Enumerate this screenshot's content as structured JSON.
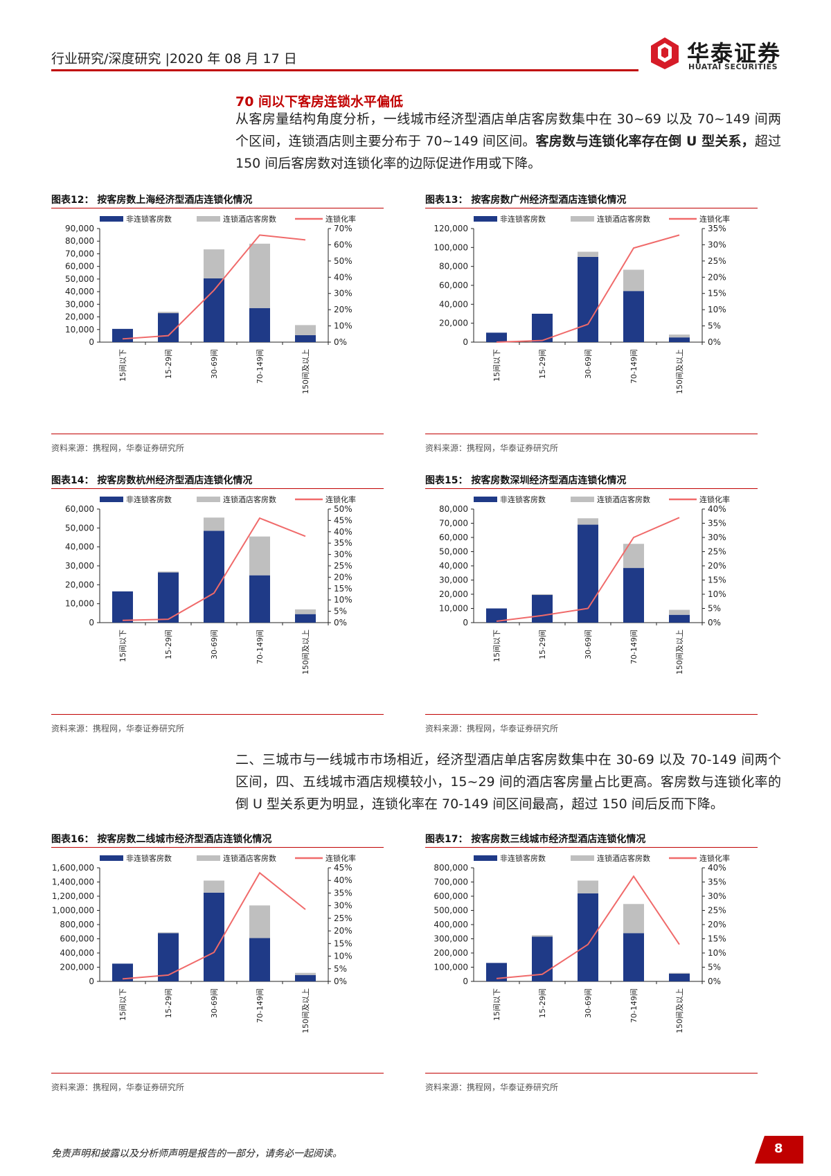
{
  "header": {
    "left_text": "行业研究/深度研究  |2020 年 08 月 17 日",
    "logo_cn": "华泰证券",
    "logo_en": "HUATAI SECURITIES"
  },
  "section": {
    "title": "70 间以下客房连锁水平偏低",
    "para1_a": "从客房量结构角度分析，一线城市经济型酒店单店客房数集中在 30~69 以及 70~149 间两个区间，连锁酒店则主要分布于 70~149 间区间。",
    "para1_b": "客房数与连锁化率存在倒 U 型关系，",
    "para1_c": "超过 150 间后客房数对连锁化率的边际促进作用或下降。",
    "para2": "二、三城市与一线城市市场相近，经济型酒店单店客房数集中在 30-69 以及 70-149 间两个区间，四、五线城市酒店规模较小，15~29 间的酒店客房量占比更高。客房数与连锁化率的倒 U 型关系更为明显，连锁化率在 70-149 间区间最高，超过 150 间后反而下降。"
  },
  "colors": {
    "accent": "#c00000",
    "bar_dark": "#1f3a87",
    "bar_light": "#bfbfbf",
    "line": "#f06a6a"
  },
  "legend": {
    "a": "非连锁客房数",
    "b": "连锁酒店客房数",
    "c": "连锁化率"
  },
  "source_text": "资料来源：携程网，华泰证券研究所",
  "chart_data": [
    {
      "type": "bar",
      "label": "图表12：",
      "title": "按客房数上海经济型酒店连锁化情况",
      "categories": [
        "15间以下",
        "15-29间",
        "30-69间",
        "70-149间",
        "150间及以上"
      ],
      "series": [
        {
          "name": "非连锁客房数",
          "values": [
            10500,
            23000,
            50500,
            27000,
            5500
          ]
        },
        {
          "name": "连锁酒店客房数",
          "values": [
            0,
            1000,
            23000,
            51000,
            8000
          ]
        },
        {
          "name": "连锁化率",
          "values": [
            2,
            4,
            32,
            66,
            63
          ]
        }
      ],
      "y_left": {
        "max": 90000,
        "ticks": [
          "0",
          "10,000",
          "20,000",
          "30,000",
          "40,000",
          "50,000",
          "60,000",
          "70,000",
          "80,000",
          "90,000"
        ]
      },
      "y_right": {
        "max": 70,
        "ticks": [
          "0%",
          "10%",
          "20%",
          "30%",
          "40%",
          "50%",
          "60%",
          "70%"
        ]
      }
    },
    {
      "type": "bar",
      "label": "图表13：",
      "title": "按客房数广州经济型酒店连锁化情况",
      "categories": [
        "15间以下",
        "15-29间",
        "30-69间",
        "70-149间",
        "150间及以上"
      ],
      "series": [
        {
          "name": "非连锁客房数",
          "values": [
            10000,
            30000,
            90000,
            54000,
            5000
          ]
        },
        {
          "name": "连锁酒店客房数",
          "values": [
            0,
            0,
            5500,
            22500,
            3000
          ]
        },
        {
          "name": "连锁化率",
          "values": [
            0,
            0.5,
            5.5,
            29,
            33
          ]
        }
      ],
      "y_left": {
        "max": 120000,
        "ticks": [
          "0",
          "20,000",
          "40,000",
          "60,000",
          "80,000",
          "100,000",
          "120,000"
        ]
      },
      "y_right": {
        "max": 35,
        "ticks": [
          "0%",
          "5%",
          "10%",
          "15%",
          "20%",
          "25%",
          "30%",
          "35%"
        ]
      }
    },
    {
      "type": "bar",
      "label": "图表14：",
      "title": "按客房数杭州经济型酒店连锁化情况",
      "categories": [
        "15间以下",
        "15-29间",
        "30-69间",
        "70-149间",
        "150间及以上"
      ],
      "series": [
        {
          "name": "非连锁客房数",
          "values": [
            16500,
            26500,
            48500,
            25000,
            4500
          ]
        },
        {
          "name": "连锁酒店客房数",
          "values": [
            0,
            500,
            7000,
            20500,
            2500
          ]
        },
        {
          "name": "连锁化率",
          "values": [
            1,
            1.5,
            13,
            46,
            38
          ]
        }
      ],
      "y_left": {
        "max": 60000,
        "ticks": [
          "0",
          "10,000",
          "20,000",
          "30,000",
          "40,000",
          "50,000",
          "60,000"
        ]
      },
      "y_right": {
        "max": 50,
        "ticks": [
          "0%",
          "5%",
          "10%",
          "15%",
          "20%",
          "25%",
          "30%",
          "35%",
          "40%",
          "45%",
          "50%"
        ]
      }
    },
    {
      "type": "bar",
      "label": "图表15：",
      "title": "按客房数深圳经济型酒店连锁化情况",
      "categories": [
        "15间以下",
        "15-29间",
        "30-69间",
        "70-149间",
        "150间及以上"
      ],
      "series": [
        {
          "name": "非连锁客房数",
          "values": [
            10000,
            19500,
            69000,
            38500,
            5500
          ]
        },
        {
          "name": "连锁酒店客房数",
          "values": [
            0,
            500,
            4500,
            17000,
            3500
          ]
        },
        {
          "name": "连锁化率",
          "values": [
            0.5,
            2.5,
            5,
            30,
            37
          ]
        }
      ],
      "y_left": {
        "max": 80000,
        "ticks": [
          "0",
          "10,000",
          "20,000",
          "30,000",
          "40,000",
          "50,000",
          "60,000",
          "70,000",
          "80,000"
        ]
      },
      "y_right": {
        "max": 40,
        "ticks": [
          "0%",
          "5%",
          "10%",
          "15%",
          "20%",
          "25%",
          "30%",
          "35%",
          "40%"
        ]
      }
    },
    {
      "type": "bar",
      "label": "图表16：",
      "title": "按客房数二线城市经济型酒店连锁化情况",
      "categories": [
        "15间以下",
        "15-29间",
        "30-69间",
        "70-149间",
        "150间及以上"
      ],
      "series": [
        {
          "name": "非连锁客房数",
          "values": [
            250000,
            680000,
            1250000,
            610000,
            90000
          ]
        },
        {
          "name": "连锁酒店客房数",
          "values": [
            0,
            10000,
            170000,
            460000,
            30000
          ]
        },
        {
          "name": "连锁化率",
          "values": [
            1,
            2.5,
            11.5,
            43,
            28.5
          ]
        }
      ],
      "y_left": {
        "max": 1600000,
        "ticks": [
          "0",
          "200,000",
          "400,000",
          "600,000",
          "800,000",
          "1,000,000",
          "1,200,000",
          "1,400,000",
          "1,600,000"
        ]
      },
      "y_right": {
        "max": 45,
        "ticks": [
          "0%",
          "5%",
          "10%",
          "15%",
          "20%",
          "25%",
          "30%",
          "35%",
          "40%",
          "45%"
        ]
      }
    },
    {
      "type": "bar",
      "label": "图表17：",
      "title": "按客房数三线城市经济型酒店连锁化情况",
      "categories": [
        "15间以下",
        "15-29间",
        "30-69间",
        "70-149间",
        "150间及以上"
      ],
      "series": [
        {
          "name": "非连锁客房数",
          "values": [
            130000,
            315000,
            620000,
            340000,
            55000
          ]
        },
        {
          "name": "连锁酒店客房数",
          "values": [
            0,
            10000,
            90000,
            205000,
            5000
          ]
        },
        {
          "name": "连锁化率",
          "values": [
            1,
            2.5,
            13,
            37,
            13
          ]
        }
      ],
      "y_left": {
        "max": 800000,
        "ticks": [
          "0",
          "100,000",
          "200,000",
          "300,000",
          "400,000",
          "500,000",
          "600,000",
          "700,000",
          "800,000"
        ]
      },
      "y_right": {
        "max": 40,
        "ticks": [
          "0%",
          "5%",
          "10%",
          "15%",
          "20%",
          "25%",
          "30%",
          "35%",
          "40%"
        ]
      }
    }
  ],
  "footer": {
    "note": "免责声明和披露以及分析师声明是报告的一部分，请务必一起阅读。",
    "page": "8"
  }
}
